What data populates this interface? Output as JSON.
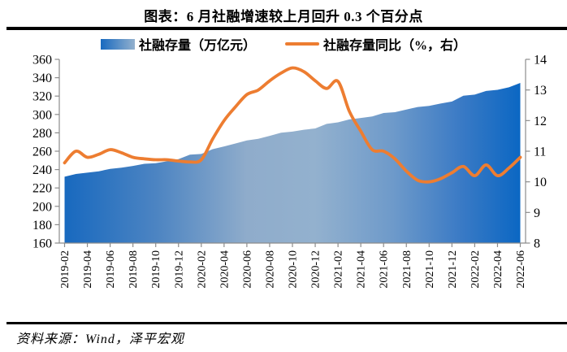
{
  "title": "图表：6 月社融增速较上月回升 0.3 个百分点",
  "legend": {
    "area": {
      "label": "社融存量（万亿元）"
    },
    "line": {
      "label": "社融存量同比（%，右）"
    }
  },
  "footer": {
    "source": "资料来源：Wind，泽平宏观"
  },
  "colors": {
    "line": "#ED7D31",
    "axis": "#8C8C8C",
    "text": "#000000",
    "rule": "#000000",
    "area_gradient": [
      "#1869BF",
      "#4C84C2",
      "#8FACCB",
      "#93B1CE",
      "#6E9ACA",
      "#3A7AC5",
      "#0B67C3"
    ],
    "area_gradient_offsets": [
      0,
      0.2,
      0.4,
      0.55,
      0.72,
      0.87,
      1
    ]
  },
  "chart_data": {
    "type": "area",
    "x": [
      "2019-02",
      "2019-03",
      "2019-04",
      "2019-05",
      "2019-06",
      "2019-07",
      "2019-08",
      "2019-09",
      "2019-10",
      "2019-11",
      "2019-12",
      "2020-01",
      "2020-02",
      "2020-03",
      "2020-04",
      "2020-05",
      "2020-06",
      "2020-07",
      "2020-08",
      "2020-09",
      "2020-10",
      "2020-11",
      "2020-12",
      "2021-01",
      "2021-02",
      "2021-03",
      "2021-04",
      "2021-05",
      "2021-06",
      "2021-07",
      "2021-08",
      "2021-09",
      "2021-10",
      "2021-11",
      "2021-12",
      "2022-01",
      "2022-02",
      "2022-03",
      "2022-04",
      "2022-05",
      "2022-06"
    ],
    "x_tick_every": 2,
    "series": [
      {
        "name": "社融存量（万亿元）",
        "type": "area",
        "axis": "left",
        "values": [
          232.2,
          235.2,
          236.6,
          238.1,
          240.8,
          242.0,
          244.0,
          246.3,
          247.0,
          249.0,
          251.3,
          256.2,
          257.0,
          262.2,
          265.2,
          268.4,
          271.8,
          273.5,
          276.7,
          280.1,
          281.3,
          283.4,
          284.8,
          289.7,
          291.4,
          294.6,
          296.2,
          297.8,
          301.6,
          302.5,
          305.3,
          308.1,
          309.4,
          311.9,
          314.1,
          320.4,
          321.6,
          325.6,
          326.8,
          329.6,
          334.3
        ]
      },
      {
        "name": "社融存量同比（%，右）",
        "type": "line",
        "axis": "right",
        "values": [
          10.62,
          11.0,
          10.8,
          10.9,
          11.05,
          10.95,
          10.8,
          10.75,
          10.72,
          10.72,
          10.68,
          10.65,
          10.72,
          11.4,
          12.0,
          12.45,
          12.85,
          13.0,
          13.3,
          13.55,
          13.72,
          13.6,
          13.3,
          13.05,
          13.28,
          12.3,
          11.65,
          11.05,
          11.0,
          10.75,
          10.35,
          10.05,
          10.0,
          10.1,
          10.3,
          10.5,
          10.2,
          10.55,
          10.2,
          10.45,
          10.8
        ]
      }
    ],
    "left_axis": {
      "min": 160,
      "max": 360,
      "step": 20
    },
    "right_axis": {
      "min": 8,
      "max": 14,
      "step": 1
    },
    "grid": false,
    "legend_position": "top"
  }
}
